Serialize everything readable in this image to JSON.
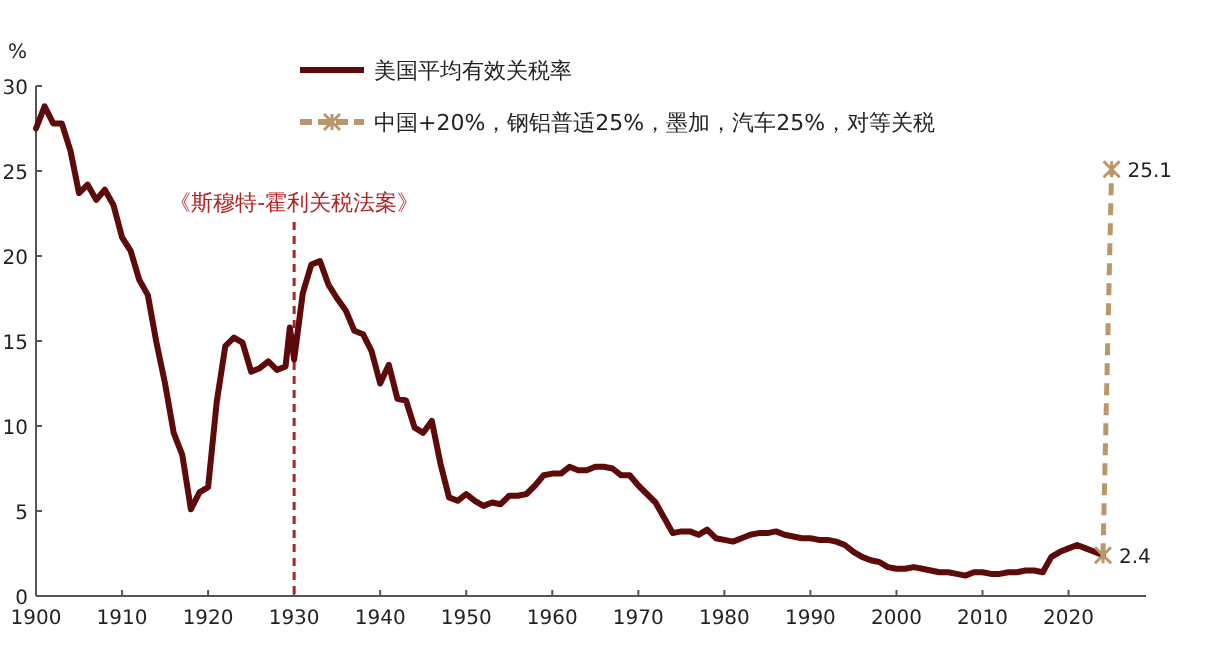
{
  "chart_data": {
    "type": "line",
    "ylabel": "%",
    "xlim": [
      1900,
      2029
    ],
    "xticks": [
      1900,
      1910,
      1920,
      1930,
      1940,
      1950,
      1960,
      1970,
      1980,
      1990,
      2000,
      2010,
      2020
    ],
    "ylim": [
      0,
      30
    ],
    "yticks": [
      0,
      5,
      10,
      15,
      20,
      25,
      30
    ],
    "grid": false,
    "legend": "top",
    "ref_lines": [
      {
        "axis": "x",
        "value": 1930,
        "label": "《斯穆特-霍利关税法案》",
        "color": "#b22222",
        "line_style": "dashed"
      }
    ],
    "series": [
      {
        "name": "美国平均有效关税率",
        "color": "#5c0a0a",
        "line_style": "solid",
        "marker": "none",
        "x": [
          1900,
          1901,
          1902,
          1903,
          1904,
          1905,
          1906,
          1907,
          1908,
          1909,
          1910,
          1911,
          1912,
          1913,
          1914,
          1915,
          1916,
          1917,
          1918,
          1919,
          1920,
          1921,
          1922,
          1923,
          1924,
          1925,
          1926,
          1927,
          1928,
          1929,
          1929.5,
          1930,
          1931,
          1932,
          1933,
          1934,
          1935,
          1936,
          1937,
          1938,
          1939,
          1940,
          1941,
          1942,
          1943,
          1944,
          1945,
          1946,
          1947,
          1948,
          1949,
          1950,
          1951,
          1952,
          1953,
          1954,
          1955,
          1956,
          1957,
          1958,
          1959,
          1960,
          1961,
          1962,
          1963,
          1964,
          1965,
          1966,
          1967,
          1968,
          1969,
          1970,
          1971,
          1972,
          1973,
          1974,
          1975,
          1976,
          1977,
          1978,
          1979,
          1980,
          1981,
          1982,
          1983,
          1984,
          1985,
          1986,
          1987,
          1988,
          1989,
          1990,
          1991,
          1992,
          1993,
          1994,
          1995,
          1996,
          1997,
          1998,
          1999,
          2000,
          2001,
          2002,
          2003,
          2004,
          2005,
          2006,
          2007,
          2008,
          2009,
          2010,
          2011,
          2012,
          2013,
          2014,
          2015,
          2016,
          2017,
          2018,
          2019,
          2020,
          2021,
          2022,
          2023,
          2024
        ],
        "values": [
          27.5,
          28.8,
          27.8,
          27.8,
          26.2,
          23.7,
          24.2,
          23.3,
          23.9,
          23.0,
          21.1,
          20.3,
          18.6,
          17.7,
          14.9,
          12.5,
          9.6,
          8.3,
          5.1,
          6.1,
          6.4,
          11.4,
          14.7,
          15.2,
          14.9,
          13.2,
          13.4,
          13.8,
          13.3,
          13.5,
          15.8,
          13.9,
          17.8,
          19.5,
          19.7,
          18.3,
          17.5,
          16.8,
          15.6,
          15.4,
          14.4,
          12.5,
          13.6,
          11.6,
          11.5,
          9.9,
          9.6,
          10.3,
          7.8,
          5.8,
          5.6,
          6.0,
          5.6,
          5.3,
          5.5,
          5.4,
          5.9,
          5.9,
          6.0,
          6.5,
          7.1,
          7.2,
          7.2,
          7.6,
          7.4,
          7.4,
          7.6,
          7.6,
          7.5,
          7.1,
          7.1,
          6.5,
          6.0,
          5.5,
          4.6,
          3.7,
          3.8,
          3.8,
          3.6,
          3.9,
          3.4,
          3.3,
          3.2,
          3.4,
          3.6,
          3.7,
          3.7,
          3.8,
          3.6,
          3.5,
          3.4,
          3.4,
          3.3,
          3.3,
          3.2,
          3.0,
          2.6,
          2.3,
          2.1,
          2.0,
          1.7,
          1.6,
          1.6,
          1.7,
          1.6,
          1.5,
          1.4,
          1.4,
          1.3,
          1.2,
          1.4,
          1.4,
          1.3,
          1.3,
          1.4,
          1.4,
          1.5,
          1.5,
          1.4,
          2.3,
          2.6,
          2.8,
          3.0,
          2.8,
          2.6,
          2.4
        ]
      },
      {
        "name": "中国+20%，钢铝普适25%，墨加，汽车25%，对等关税",
        "color": "#b8976a",
        "line_style": "dashed",
        "marker": "cross",
        "x": [
          2024,
          2025
        ],
        "values": [
          2.4,
          25.1
        ],
        "value_labels": [
          "2.4",
          "25.1"
        ]
      }
    ]
  }
}
